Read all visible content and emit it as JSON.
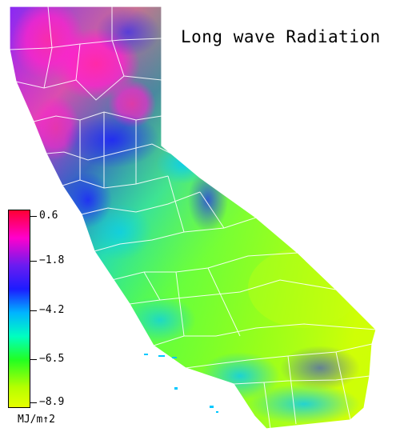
{
  "title": "Long wave Radiation",
  "legend": {
    "unit": "MJ/m↑2",
    "ticks": [
      "0.6",
      "−1.8",
      "−4.2",
      "−6.5",
      "−8.9"
    ],
    "gradient": [
      "#ff0033",
      "#ff00cc",
      "#6a1cf0",
      "#1c1cff",
      "#00b4ff",
      "#00ffc0",
      "#22ff22",
      "#b6ff00",
      "#e6ff00"
    ]
  },
  "colors": {
    "north": "#ff22cc",
    "north_mid": "#2828ff",
    "coast": "#00c8ff",
    "central_valley": "#34ff5a",
    "southeast": "#b8ff1a",
    "borders": "#ffffff"
  }
}
